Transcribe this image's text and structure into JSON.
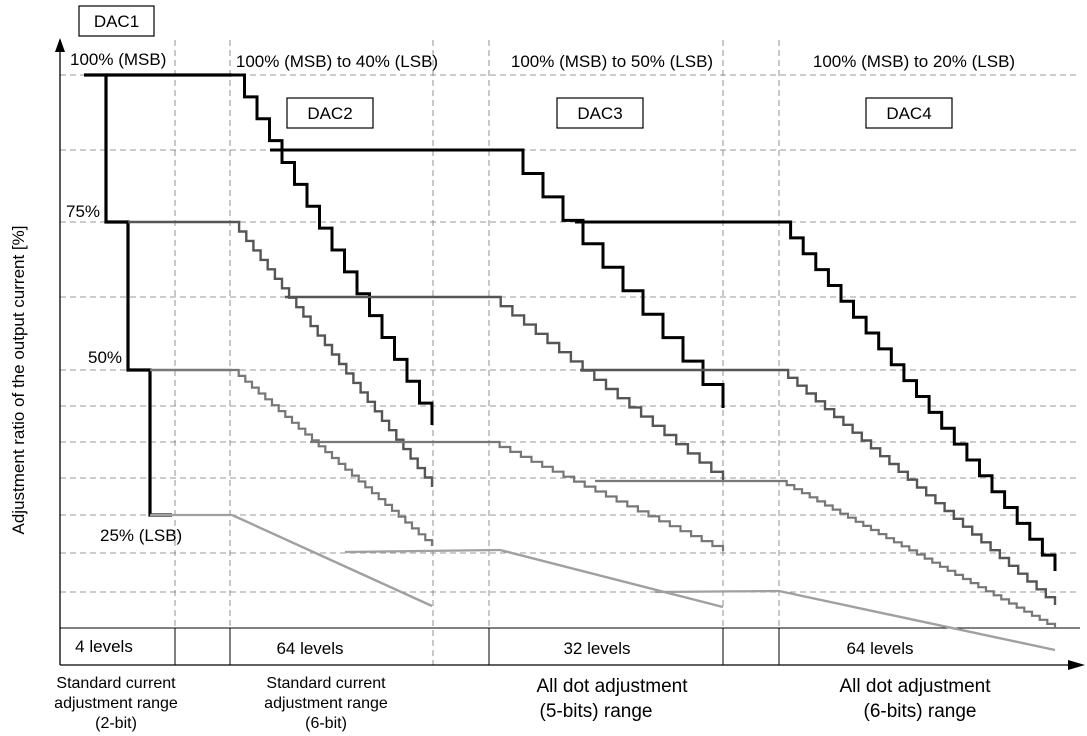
{
  "chart_data": {
    "type": "line",
    "ylabel": "Adjustment ratio of the output current [%]",
    "y_levels_percent": [
      100,
      75,
      50,
      25
    ],
    "dac_boxes": [
      "DAC1",
      "DAC2",
      "DAC3",
      "DAC4"
    ],
    "top_ranges": [
      "100% (MSB) to 40% (LSB)",
      "100% (MSB) to 50% (LSB)",
      "100% (MSB) to 20% (LSB)"
    ],
    "level_labels": [
      "100% (MSB)",
      "75%",
      "50%",
      "25% (LSB)"
    ],
    "level_counts": [
      "4 levels",
      "64 levels",
      "32 levels",
      "64 levels"
    ],
    "range_labels": [
      {
        "lines": [
          "Standard current",
          "adjustment range",
          "(2-bit)"
        ]
      },
      {
        "lines": [
          "Standard current",
          "adjustment range",
          "(6-bit)"
        ]
      },
      {
        "lines": [
          "All dot adjustment",
          "(5-bits) range"
        ]
      },
      {
        "lines": [
          "All dot adjustment",
          "(6-bits) range"
        ]
      }
    ],
    "dac1_steps": 4,
    "dac2_steps": 64,
    "dac3_steps": 32,
    "dac4_steps": 64,
    "dac2_range_percent": [
      100,
      40
    ],
    "dac3_range_percent": [
      100,
      50
    ],
    "dac4_range_percent": [
      100,
      20
    ],
    "series": [
      {
        "start_level": "100%",
        "color": "#000000"
      },
      {
        "start_level": "75%",
        "color": "#555555"
      },
      {
        "start_level": "50%",
        "color": "#777777"
      },
      {
        "start_level": "25%",
        "color": "#a0a0a0"
      }
    ],
    "grid": true
  }
}
